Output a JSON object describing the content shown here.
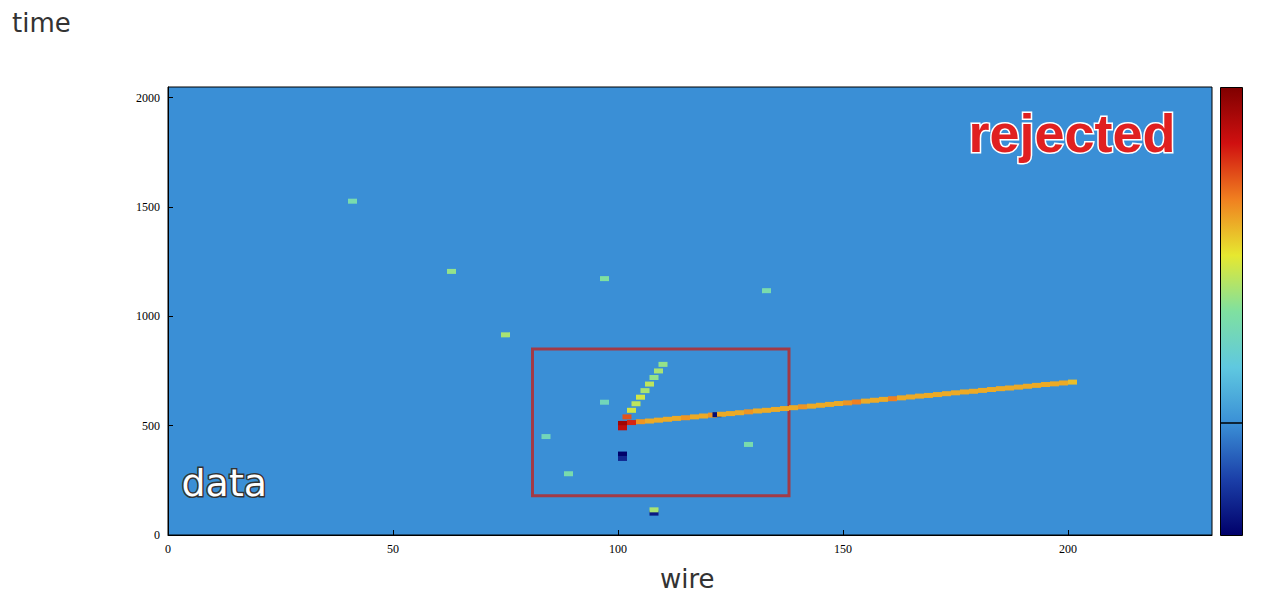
{
  "chart_data": {
    "type": "heatmap",
    "x_label": "wire",
    "y_label": "time",
    "annotations": [
      "data",
      "rejected"
    ],
    "xlim": [
      0,
      232
    ],
    "xticks": [
      0,
      50,
      100,
      150,
      200
    ],
    "ylim": [
      0,
      2048
    ],
    "yticks": [
      0,
      500,
      1000,
      1500,
      2000
    ],
    "tick_labels": true,
    "grid": false,
    "colorbar": {
      "range": [
        -50,
        150
      ],
      "baseline": 0
    },
    "box": {
      "x": [
        81,
        138
      ],
      "y": [
        180,
        850
      ]
    },
    "cells": [
      [
        101,
        510,
        140
      ],
      [
        103,
        514,
        120
      ],
      [
        105,
        518,
        95
      ],
      [
        107,
        521,
        90
      ],
      [
        109,
        525,
        90
      ],
      [
        111,
        529,
        90
      ],
      [
        113,
        533,
        90
      ],
      [
        115,
        536,
        95
      ],
      [
        117,
        540,
        90
      ],
      [
        119,
        544,
        90
      ],
      [
        121,
        548,
        95
      ],
      [
        122,
        550,
        -45
      ],
      [
        123,
        552,
        90
      ],
      [
        125,
        555,
        90
      ],
      [
        127,
        559,
        90
      ],
      [
        129,
        563,
        95
      ],
      [
        131,
        567,
        90
      ],
      [
        133,
        570,
        90
      ],
      [
        135,
        574,
        90
      ],
      [
        137,
        578,
        90
      ],
      [
        139,
        582,
        90
      ],
      [
        141,
        586,
        95
      ],
      [
        143,
        589,
        90
      ],
      [
        145,
        593,
        90
      ],
      [
        147,
        597,
        90
      ],
      [
        149,
        601,
        90
      ],
      [
        151,
        604,
        95
      ],
      [
        153,
        608,
        100
      ],
      [
        155,
        612,
        90
      ],
      [
        157,
        616,
        90
      ],
      [
        159,
        620,
        90
      ],
      [
        161,
        623,
        100
      ],
      [
        163,
        627,
        90
      ],
      [
        165,
        631,
        90
      ],
      [
        167,
        635,
        90
      ],
      [
        169,
        638,
        90
      ],
      [
        171,
        642,
        90
      ],
      [
        173,
        646,
        90
      ],
      [
        175,
        650,
        90
      ],
      [
        177,
        654,
        90
      ],
      [
        179,
        657,
        90
      ],
      [
        181,
        661,
        90
      ],
      [
        183,
        665,
        90
      ],
      [
        185,
        669,
        90
      ],
      [
        187,
        672,
        90
      ],
      [
        189,
        676,
        90
      ],
      [
        191,
        680,
        90
      ],
      [
        193,
        684,
        90
      ],
      [
        195,
        688,
        90
      ],
      [
        197,
        691,
        90
      ],
      [
        199,
        695,
        90
      ],
      [
        201,
        699,
        85
      ],
      [
        102,
        540,
        110
      ],
      [
        103,
        570,
        70
      ],
      [
        104,
        600,
        65
      ],
      [
        105,
        630,
        70
      ],
      [
        106,
        660,
        60
      ],
      [
        107,
        690,
        65
      ],
      [
        108,
        720,
        55
      ],
      [
        109,
        750,
        60
      ],
      [
        110,
        780,
        55
      ],
      [
        101,
        490,
        130
      ],
      [
        101,
        370,
        -50
      ],
      [
        101,
        350,
        -35
      ],
      [
        108,
        100,
        -40
      ],
      [
        108,
        115,
        60
      ],
      [
        75,
        915,
        60
      ],
      [
        63,
        1205,
        55
      ],
      [
        97,
        1172,
        50
      ],
      [
        133,
        1117,
        45
      ],
      [
        41,
        1526,
        45
      ],
      [
        97,
        607,
        40
      ],
      [
        84,
        450,
        40
      ],
      [
        89,
        280,
        45
      ],
      [
        129,
        414,
        45
      ]
    ]
  }
}
